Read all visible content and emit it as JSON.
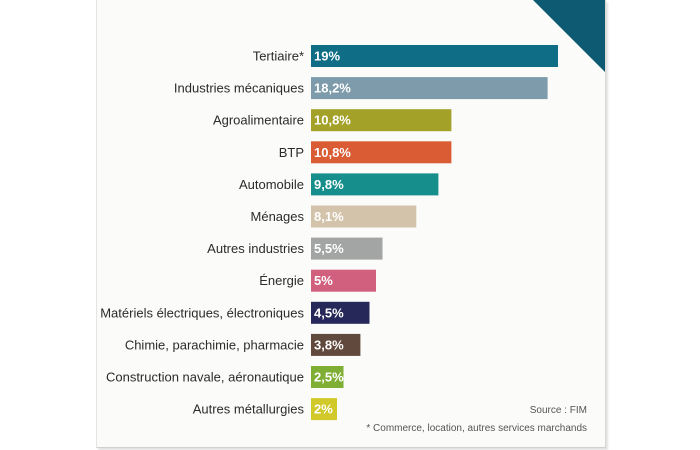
{
  "chart_data": {
    "type": "bar",
    "orientation": "horizontal",
    "categories": [
      "Tertiaire*",
      "Industries mécaniques",
      "Agroalimentaire",
      "BTP",
      "Automobile",
      "Ménages",
      "Autres industries",
      "Énergie",
      "Matériels électriques, électroniques",
      "Chimie, parachimie, pharmacie",
      "Construction navale, aéronautique",
      "Autres métallurgies"
    ],
    "values": [
      19,
      18.2,
      10.8,
      10.8,
      9.8,
      8.1,
      5.5,
      5,
      4.5,
      3.8,
      2.5,
      2
    ],
    "value_labels": [
      "19%",
      "18,2%",
      "10,8%",
      "10,8%",
      "9,8%",
      "8,1%",
      "5,5%",
      "5%",
      "4,5%",
      "3,8%",
      "2,5%",
      "2%"
    ],
    "colors": [
      "#0f6d86",
      "#7e9bab",
      "#a3a127",
      "#d95c35",
      "#168e8c",
      "#d3c3aa",
      "#a2a5a3",
      "#d0607d",
      "#26285a",
      "#62493d",
      "#7fae35",
      "#d1c829"
    ],
    "grid": false,
    "legend": "none"
  },
  "source": "Source : FIM",
  "footnote": "* Commerce, location, autres services marchands",
  "corner_color": "#0e5a73"
}
